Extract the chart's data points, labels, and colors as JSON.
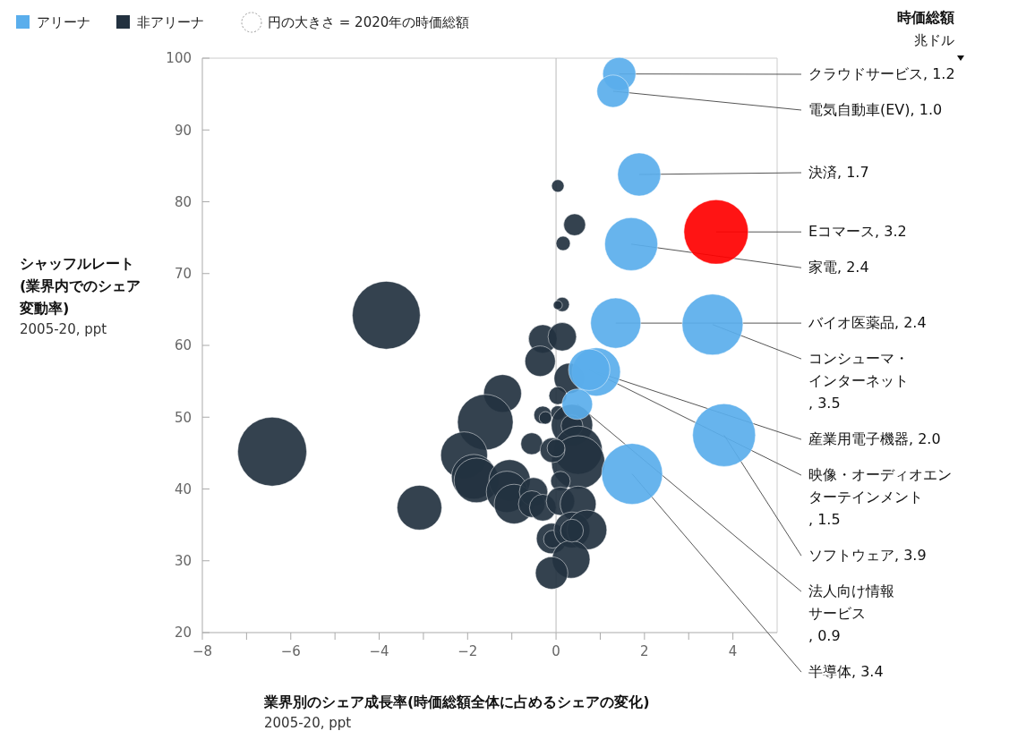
{
  "chart_data": {
    "type": "bubble",
    "xlabel": "業界別のシェア成長率(時価総額全体に占めるシェアの変化)",
    "ylabel": "シャッフルレート(業界内でのシェア変動率)",
    "legend_title": "時価総額",
    "legend": "top left",
    "xlim": [
      -8,
      5
    ],
    "ylim": [
      20,
      100
    ],
    "xticks": [
      {
        "value": -8,
        "label": "−8"
      },
      {
        "value": -7,
        "label": null
      },
      {
        "value": -6,
        "label": "−6"
      },
      {
        "value": -5,
        "label": null
      },
      {
        "value": -4,
        "label": "−4"
      },
      {
        "value": -3,
        "label": null
      },
      {
        "value": -2,
        "label": "−2"
      },
      {
        "value": -1,
        "label": null
      },
      0,
      {
        "value": 1,
        "label": null
      },
      2,
      {
        "value": 3,
        "label": null
      },
      4
    ],
    "yticks": [
      20,
      30,
      40,
      50,
      60,
      70,
      80,
      90,
      100
    ],
    "grid": false,
    "ref_lines": [
      {
        "axis": "x",
        "value": 0,
        "color": "#bbbbbb"
      }
    ],
    "series": [
      {
        "name": "非アリーナ",
        "color": "#233240",
        "x": [
          -3.84,
          -6.42,
          -3.09,
          0.04,
          0.42,
          0.16,
          0.14,
          0.04,
          -0.3,
          0.14,
          -0.36,
          0.3,
          0.04,
          -1.21,
          -1.6,
          -0.3,
          -0.24,
          0.04,
          0.36,
          0.36,
          0.5,
          0.5,
          -0.55,
          -0.08,
          0.0,
          -2.08,
          -1.86,
          -1.8,
          -1.05,
          -1.11,
          -0.95,
          -0.51,
          -0.55,
          -0.3,
          0.1,
          0.1,
          0.5,
          -0.1,
          -0.08,
          0.36,
          0.7,
          0.34,
          -0.1,
          0.36
        ],
        "values": [
          64.2,
          45.2,
          37.4,
          82.2,
          76.8,
          74.2,
          65.7,
          65.6,
          60.9,
          61.2,
          57.8,
          55.4,
          53.0,
          53.3,
          49.3,
          50.3,
          49.9,
          50.6,
          48.9,
          48.8,
          45.4,
          43.7,
          46.3,
          45.4,
          45.7,
          44.7,
          41.7,
          41.2,
          41.2,
          39.6,
          37.9,
          39.6,
          37.9,
          37.4,
          41.1,
          38.3,
          37.9,
          33.1,
          33.0,
          34.3,
          34.3,
          30.2,
          28.3,
          34.2
        ],
        "sizes": [
          0.97,
          1,
          0.42,
          0.033,
          0.1,
          0.043,
          0.043,
          0.017,
          0.17,
          0.17,
          0.195,
          0.195,
          0.067,
          0.3,
          0.65,
          0.067,
          0.033,
          0.043,
          0.36,
          0.1,
          0.49,
          0.6,
          0.1,
          0.13,
          0.067,
          0.46,
          0.42,
          0.42,
          0.36,
          0.36,
          0.33,
          0.17,
          0.15,
          0.15,
          0.08,
          0.17,
          0.27,
          0.195,
          0.067,
          0.27,
          0.33,
          0.3,
          0.22,
          0.11
        ]
      },
      {
        "name": "アリーナ",
        "color": "#5aaeec",
        "x": [
          1.43,
          1.29,
          1.88,
          3.62,
          1.7,
          1.35,
          3.54,
          0.91,
          0.75,
          3.8,
          0.48,
          1.72
        ],
        "values": [
          97.8,
          95.4,
          83.8,
          75.8,
          74.1,
          63.1,
          62.9,
          56.3,
          56.6,
          47.5,
          51.8,
          42.1
        ],
        "sizes": [
          0.23,
          0.22,
          0.39,
          0.87,
          0.59,
          0.53,
          0.78,
          0.49,
          0.36,
          0.83,
          0.195,
          0.78
        ],
        "colors": [
          "#5aaeec",
          "#5aaeec",
          "#5aaeec",
          "#ff0000",
          "#5aaeec",
          "#5aaeec",
          "#5aaeec",
          "#5aaeec",
          "#5aaeec",
          "#5aaeec",
          "#5aaeec",
          "#5aaeec"
        ]
      }
    ],
    "annotations": [
      "2005-20, ppt",
      "2005-20, ppt",
      "兆ドル",
      "円の大きさ = 2020年の時価総額",
      {
        "text": "クラウドサービス, 1.2",
        "x": 1.43,
        "y": 97.8
      },
      {
        "text": "電気自動車(EV), 1.0",
        "x": 1.29,
        "y": 95.4
      },
      {
        "text": "決済, 1.7",
        "x": 1.88,
        "y": 83.8
      },
      {
        "text": "Eコマース, 3.2",
        "x": 3.62,
        "y": 75.8
      },
      {
        "text": "家電, 2.4",
        "x": 1.7,
        "y": 74.1
      },
      {
        "text": "バイオ医薬品, 2.4",
        "x": 1.35,
        "y": 63.1
      },
      {
        "text": "コンシューマ・インターネット, 3.5",
        "x": 3.54,
        "y": 62.9
      },
      {
        "text": "産業用電子機器, 2.0",
        "x": 0.91,
        "y": 56.3
      },
      {
        "text": "映像・オーディオエンターテインメント, 1.5",
        "x": 0.75,
        "y": 56.6
      },
      {
        "text": "ソフトウェア, 3.9",
        "x": 3.8,
        "y": 47.5
      },
      {
        "text": "法人向け情報サービス, 0.9",
        "x": 0.48,
        "y": 51.8
      },
      {
        "text": "半導体, 3.4",
        "x": 1.72,
        "y": 42.1
      }
    ]
  }
}
